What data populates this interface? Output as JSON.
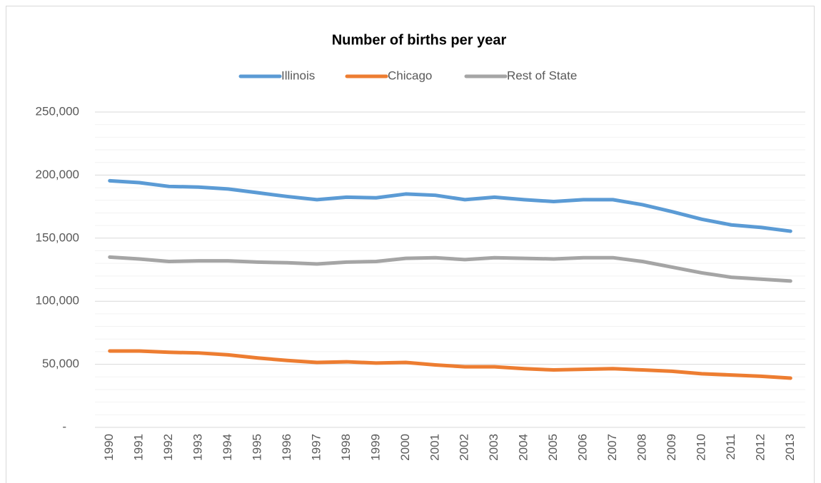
{
  "chart_data": {
    "type": "line",
    "title": "Number of births per year",
    "categories": [
      "1990",
      "1991",
      "1992",
      "1993",
      "1994",
      "1995",
      "1996",
      "1997",
      "1998",
      "1999",
      "2000",
      "2001",
      "2002",
      "2003",
      "2004",
      "2005",
      "2006",
      "2007",
      "2008",
      "2009",
      "2010",
      "2011",
      "2012",
      "2013"
    ],
    "series": [
      {
        "name": "Illinois",
        "color": "#5b9bd5",
        "values": [
          195500,
          194000,
          191000,
          190500,
          189000,
          186000,
          183000,
          180500,
          182500,
          182000,
          185000,
          184000,
          180500,
          182500,
          180500,
          179000,
          180500,
          180500,
          176500,
          171000,
          165000,
          160500,
          158500,
          155500
        ]
      },
      {
        "name": "Chicago",
        "color": "#ed7d31",
        "values": [
          60500,
          60500,
          59500,
          59000,
          57500,
          55000,
          53000,
          51500,
          52000,
          51000,
          51500,
          49500,
          48000,
          48000,
          46500,
          45500,
          46000,
          46500,
          45500,
          44500,
          42500,
          41500,
          40500,
          39000
        ]
      },
      {
        "name": "Rest of State",
        "color": "#a5a5a5",
        "values": [
          135000,
          133500,
          131500,
          132000,
          132000,
          131000,
          130500,
          129500,
          131000,
          131500,
          134000,
          134500,
          133000,
          134500,
          134000,
          133500,
          134500,
          134500,
          131500,
          127000,
          122500,
          119000,
          117500,
          116000
        ]
      }
    ],
    "ylim": [
      0,
      250000
    ],
    "yticks": [
      {
        "value": 0,
        "label": "-"
      },
      {
        "value": 50000,
        "label": "50,000"
      },
      {
        "value": 100000,
        "label": "100,000"
      },
      {
        "value": 150000,
        "label": "150,000"
      },
      {
        "value": 200000,
        "label": "200,000"
      },
      {
        "value": 250000,
        "label": "250,000"
      }
    ],
    "yminorticks": [
      10000,
      20000,
      30000,
      40000,
      60000,
      70000,
      80000,
      90000,
      110000,
      120000,
      130000,
      140000,
      160000,
      170000,
      180000,
      190000,
      210000,
      220000,
      230000,
      240000
    ],
    "grid": true,
    "legend": "top"
  }
}
